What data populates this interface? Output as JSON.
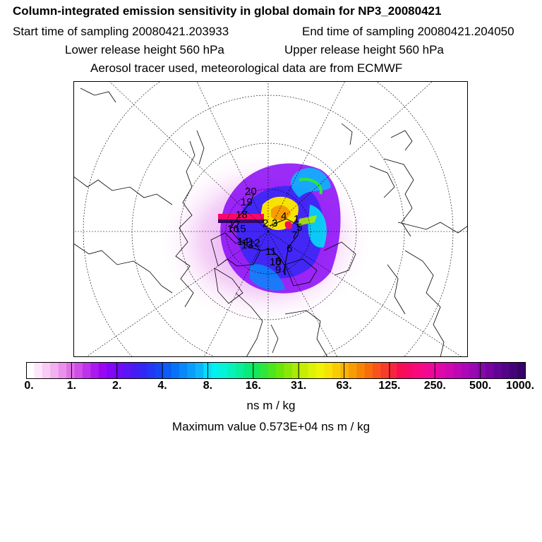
{
  "header": {
    "title": "Column-integrated emission sensitivity in global domain for NP3_20080421",
    "start_time": "Start time of sampling 20080421.203933",
    "end_time": "End time of sampling 20080421.204050",
    "lower_release": "Lower release height  560 hPa",
    "upper_release": "Upper release height  560 hPa",
    "tracer_info": "Aerosol tracer used, meteorological data are from ECMWF"
  },
  "map": {
    "trajectory_labels": [
      "20",
      "19",
      "18",
      "17",
      "16",
      "15",
      "14",
      "13",
      "12",
      "11",
      "10",
      "9",
      "8",
      "7",
      "6",
      "5",
      "4",
      "3",
      "2",
      "1"
    ]
  },
  "colorbar": {
    "tick_labels": [
      "0.",
      "1.",
      "2.",
      "4.",
      "8.",
      "16.",
      "31.",
      "63.",
      "125.",
      "250.",
      "500.",
      "1000."
    ],
    "colors": [
      "#ffffff",
      "#fde6fb",
      "#f8ccf4",
      "#f2b0ee",
      "#ea90ea",
      "#df70e6",
      "#cf4ee8",
      "#be32ec",
      "#ac18f0",
      "#9a06f4",
      "#8406f6",
      "#6e0cf6",
      "#5a14f6",
      "#461cf6",
      "#3228f4",
      "#2238f4",
      "#1448f4",
      "#0c5cf6",
      "#0872f8",
      "#0888fa",
      "#0a9efc",
      "#0cb4fc",
      "#06dcf6",
      "#02f0ee",
      "#04f4d6",
      "#06f2ba",
      "#08ee9a",
      "#08ea7a",
      "#14e85a",
      "#2ee63c",
      "#4ae61e",
      "#6ae60a",
      "#8ae806",
      "#aaea06",
      "#c6ee04",
      "#ddf204",
      "#f0f404",
      "#f8e204",
      "#f8cc04",
      "#f8b404",
      "#f89c04",
      "#f88404",
      "#f86c0c",
      "#f8541c",
      "#f83c2c",
      "#f82440",
      "#f80c54",
      "#f80868",
      "#f8087c",
      "#f40890",
      "#ec089e",
      "#e008a8",
      "#d008b0",
      "#be08b6",
      "#ac08b8",
      "#9a08b4",
      "#8806ac",
      "#7604a0",
      "#640494",
      "#540488",
      "#440478",
      "#360468"
    ]
  },
  "unit_label": "ns m / kg",
  "max_value": "Maximum value  0.573E+04 ns m / kg",
  "colors": {
    "background": "#ffffff",
    "text": "#000000"
  }
}
